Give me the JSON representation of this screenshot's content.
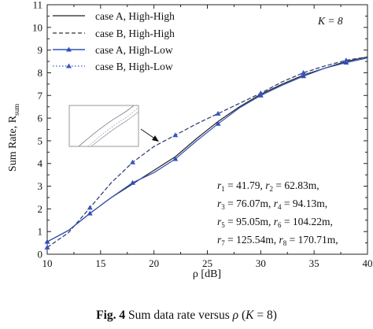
{
  "chart_data": {
    "type": "line",
    "xlabel": "ρ [dB]",
    "ylabel": "Sum Rate, R",
    "ylabel_sub": "sum",
    "xlim": [
      10,
      40
    ],
    "ylim": [
      0,
      11
    ],
    "xticks": [
      "10",
      "15",
      "20",
      "25",
      "30",
      "35",
      "40"
    ],
    "yticks": [
      "0",
      "1",
      "2",
      "3",
      "4",
      "5",
      "6",
      "7",
      "8",
      "9",
      "10",
      "11"
    ],
    "annotation_k": "K = 8",
    "radii_lines": [
      {
        "a_var": "r",
        "a_sub": "1",
        "a_val": " = 41.79, ",
        "b_var": "r",
        "b_sub": "2",
        "b_val": " = 62.83m,"
      },
      {
        "a_var": "r",
        "a_sub": "3",
        "a_val": " = 76.07m, ",
        "b_var": "r",
        "b_sub": "4",
        "b_val": " = 94.13m,"
      },
      {
        "a_var": "r",
        "a_sub": "5",
        "a_val": " = 95.05m, ",
        "b_var": "r",
        "b_sub": "6",
        "b_val": " = 104.22m,"
      },
      {
        "a_var": "r",
        "a_sub": "7",
        "a_val": " = 125.54m, ",
        "b_var": "r",
        "b_sub": "8",
        "b_val": " = 170.71m,"
      }
    ],
    "x": [
      10,
      12,
      14,
      16,
      18,
      20,
      22,
      24,
      26,
      28,
      30,
      32,
      34,
      36,
      38,
      40
    ],
    "series": [
      {
        "name": "case A, High-High",
        "style": "solid",
        "marker": "none",
        "color": "#222222",
        "values": [
          0.55,
          1.05,
          1.8,
          2.5,
          3.1,
          3.7,
          4.3,
          5.1,
          5.85,
          6.5,
          7.05,
          7.5,
          7.9,
          8.2,
          8.5,
          8.7
        ]
      },
      {
        "name": "case B, High-High",
        "style": "dashed",
        "marker": "none",
        "color": "#333333",
        "values": [
          0.3,
          0.95,
          2.05,
          3.15,
          4.05,
          4.75,
          5.25,
          5.75,
          6.2,
          6.65,
          7.1,
          7.6,
          8.0,
          8.3,
          8.55,
          8.7
        ]
      },
      {
        "name": "case A, High-Low",
        "style": "solid",
        "marker": "triangle",
        "color": "#3050b8",
        "values": [
          0.55,
          1.05,
          1.8,
          2.5,
          3.15,
          3.6,
          4.2,
          5.0,
          5.75,
          6.45,
          7.0,
          7.45,
          7.85,
          8.2,
          8.45,
          8.65
        ]
      },
      {
        "name": "case B, High-Low",
        "style": "dotted",
        "marker": "triangle",
        "color": "#3a55c0",
        "values": [
          0.3,
          0.95,
          2.05,
          3.15,
          4.05,
          4.75,
          5.25,
          5.75,
          6.2,
          6.65,
          7.1,
          7.6,
          8.0,
          8.3,
          8.55,
          8.7
        ]
      }
    ]
  },
  "caption": {
    "fig_label": "Fig. 4",
    "text": " Sum data rate versus ",
    "symbol": "ρ",
    "open_paren": " (",
    "k_label": "K",
    "k_value": " = 8)"
  }
}
